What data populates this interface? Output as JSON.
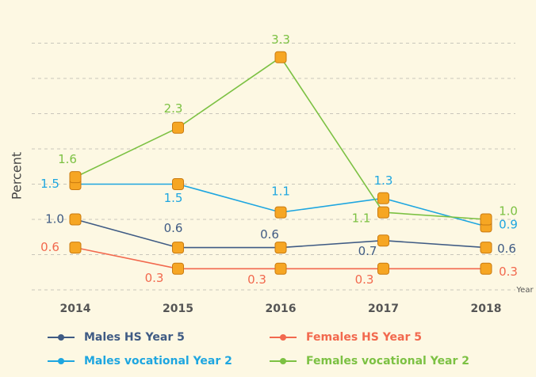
{
  "chart_data": {
    "type": "line",
    "y_label": "Percent",
    "x_label": "Year",
    "categories": [
      "2014",
      "2015",
      "2016",
      "2017",
      "2018"
    ],
    "ylim": [
      0,
      3.5
    ],
    "yticks": [
      0,
      0.5,
      1,
      1.5,
      2,
      2.5,
      3,
      3.5
    ],
    "grid": true,
    "series": [
      {
        "name": "Males HS Year 5",
        "color": "#3f5b84",
        "values": [
          1,
          0.6,
          0.6,
          0.7,
          0.6
        ],
        "value_labels": [
          "1.0",
          "0.6",
          "0.6",
          "0.7",
          "0.6"
        ]
      },
      {
        "name": "Females HS Year 5",
        "color": "#f2694e",
        "values": [
          0.6,
          0.3,
          0.3,
          0.3,
          0.3
        ]
      },
      {
        "name": "Males vocational Year 2",
        "color": "#1ea6e0",
        "values": [
          1.5,
          1.5,
          1.1,
          1.3,
          0.9
        ]
      },
      {
        "name": "Females vocational Year 2",
        "color": "#7cc143",
        "values": [
          1.6,
          2.3,
          3.3,
          1.1,
          1
        ],
        "value_labels": [
          "1.6",
          "2.3",
          "3.3",
          "1.1",
          "1.0"
        ]
      }
    ]
  }
}
